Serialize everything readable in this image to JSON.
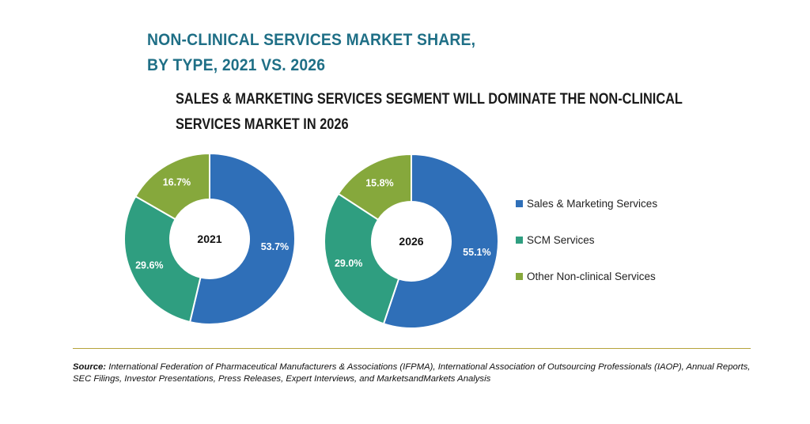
{
  "title_line1": "NON-CLINICAL SERVICES MARKET SHARE,",
  "title_line2": "BY TYPE, 2021 VS. 2026",
  "subtitle_line1": "SALES & MARKETING SERVICES SEGMENT WILL DOMINATE THE NON-CLINICAL",
  "subtitle_line2": "SERVICES MARKET IN 2026",
  "source_label": "Source:",
  "source_text": " International Federation of Pharmaceutical Manufacturers & Associations (IFPMA), International Association of Outsourcing Professionals (IAOP), Annual Reports, SEC Filings, Investor Presentations, Press Releases, Expert Interviews, and MarketsandMarkets Analysis",
  "colors": {
    "Sales & Marketing Services": "#2f6fb8",
    "SCM Services": "#2f9e80",
    "Other Non-clinical Services": "#86a83c",
    "title": "#1f6f86",
    "rule": "#b6a33a"
  },
  "chart_data": {
    "type": "pie",
    "style": "donut",
    "legend_position": "right",
    "categories": [
      "Sales & Marketing Services",
      "SCM Services",
      "Other Non-clinical Services"
    ],
    "series": [
      {
        "name": "2021",
        "values": [
          53.7,
          29.6,
          16.7
        ],
        "labels": [
          "53.7%",
          "29.6%",
          "16.7%"
        ]
      },
      {
        "name": "2026",
        "values": [
          55.1,
          29.0,
          15.8
        ],
        "labels": [
          "55.1%",
          "29.0%",
          "15.8%"
        ]
      }
    ]
  }
}
